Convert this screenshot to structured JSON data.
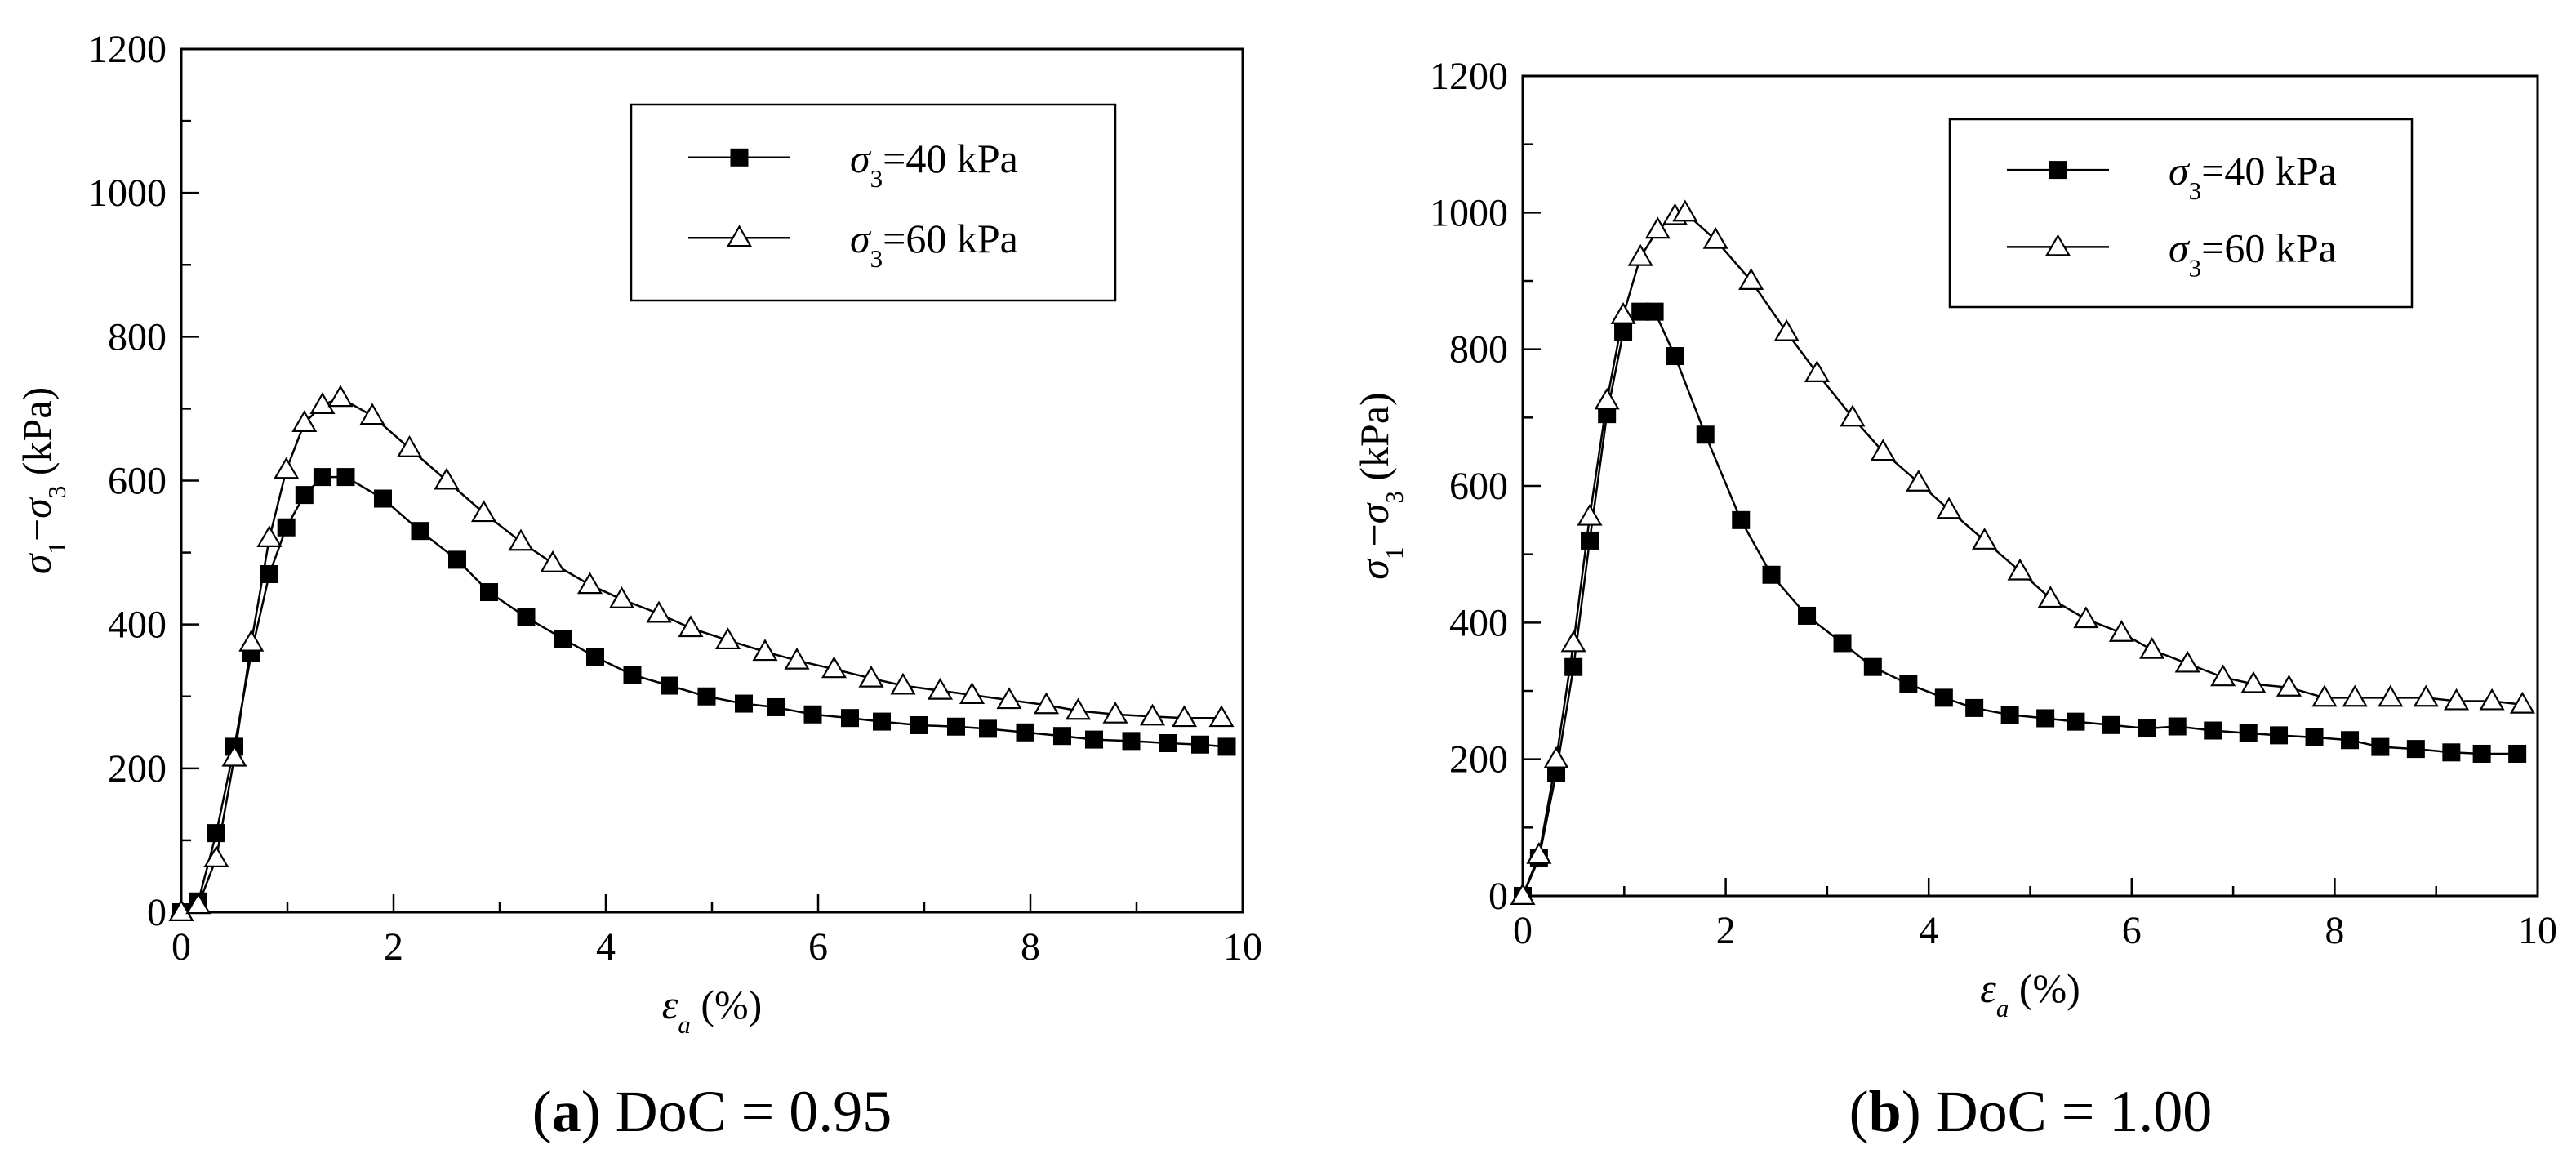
{
  "figure": {
    "panels": [
      {
        "caption_letter": "a",
        "caption_rest": " DoC = 0.95"
      },
      {
        "caption_letter": "b",
        "caption_rest": " DoC = 1.00"
      }
    ]
  },
  "chart_data": [
    {
      "type": "line",
      "title": "(a) DoC = 0.95",
      "xlabel": "εa (%)",
      "ylabel": "σ1−σ3 (kPa)",
      "xlim": [
        0,
        10
      ],
      "ylim": [
        0,
        1200
      ],
      "xticks": [
        "0",
        "2",
        "4",
        "6",
        "8",
        "10"
      ],
      "yticks": [
        "0",
        "200",
        "400",
        "600",
        "800",
        "1000",
        "1200"
      ],
      "legend_position": "top-right",
      "series": [
        {
          "name": "σ3=40 kPa",
          "marker": "filled-square",
          "x": [
            0,
            0.16,
            0.33,
            0.5,
            0.66,
            0.83,
            0.99,
            1.16,
            1.33,
            1.55,
            1.9,
            2.25,
            2.6,
            2.9,
            3.25,
            3.6,
            3.9,
            4.25,
            4.6,
            4.95,
            5.3,
            5.6,
            5.95,
            6.3,
            6.6,
            6.95,
            7.3,
            7.6,
            7.95,
            8.3,
            8.6,
            8.95,
            9.3,
            9.6,
            9.85
          ],
          "y": [
            0,
            15,
            110,
            230,
            360,
            470,
            535,
            580,
            605,
            605,
            575,
            530,
            490,
            445,
            410,
            380,
            355,
            330,
            315,
            300,
            290,
            285,
            275,
            270,
            265,
            260,
            258,
            255,
            250,
            245,
            240,
            238,
            235,
            233,
            230
          ]
        },
        {
          "name": "σ3=60 kPa",
          "marker": "open-triangle",
          "x": [
            0,
            0.16,
            0.33,
            0.5,
            0.66,
            0.83,
            0.99,
            1.16,
            1.33,
            1.5,
            1.8,
            2.15,
            2.5,
            2.85,
            3.2,
            3.5,
            3.85,
            4.15,
            4.5,
            4.8,
            5.15,
            5.5,
            5.8,
            6.15,
            6.5,
            6.8,
            7.15,
            7.45,
            7.8,
            8.15,
            8.45,
            8.8,
            9.15,
            9.45,
            9.8
          ],
          "y": [
            0,
            10,
            75,
            215,
            375,
            520,
            615,
            680,
            705,
            715,
            690,
            645,
            600,
            555,
            515,
            485,
            455,
            435,
            415,
            395,
            378,
            362,
            350,
            338,
            325,
            315,
            308,
            302,
            295,
            288,
            280,
            275,
            272,
            270,
            270
          ]
        }
      ]
    },
    {
      "type": "line",
      "title": "(b) DoC = 1.00",
      "xlabel": "εa (%)",
      "ylabel": "σ1−σ3 (kPa)",
      "xlim": [
        0,
        10
      ],
      "ylim": [
        0,
        1200
      ],
      "xticks": [
        "0",
        "2",
        "4",
        "6",
        "8",
        "10"
      ],
      "yticks": [
        "0",
        "200",
        "400",
        "600",
        "800",
        "1000",
        "1200"
      ],
      "legend_position": "top-right",
      "series": [
        {
          "name": "σ3=40 kPa",
          "marker": "filled-square",
          "x": [
            0,
            0.16,
            0.33,
            0.5,
            0.66,
            0.83,
            0.99,
            1.16,
            1.3,
            1.5,
            1.8,
            2.15,
            2.45,
            2.8,
            3.15,
            3.45,
            3.8,
            4.15,
            4.45,
            4.8,
            5.15,
            5.45,
            5.8,
            6.15,
            6.45,
            6.8,
            7.15,
            7.45,
            7.8,
            8.15,
            8.45,
            8.8,
            9.15,
            9.45,
            9.8
          ],
          "y": [
            0,
            55,
            180,
            335,
            520,
            705,
            825,
            855,
            855,
            790,
            675,
            550,
            470,
            410,
            370,
            335,
            310,
            290,
            275,
            265,
            260,
            255,
            250,
            245,
            248,
            242,
            238,
            235,
            232,
            228,
            218,
            215,
            210,
            208,
            208
          ]
        },
        {
          "name": "σ3=60 kPa",
          "marker": "open-triangle",
          "x": [
            0,
            0.16,
            0.33,
            0.5,
            0.66,
            0.83,
            0.99,
            1.16,
            1.33,
            1.5,
            1.6,
            1.9,
            2.25,
            2.6,
            2.9,
            3.25,
            3.55,
            3.9,
            4.2,
            4.55,
            4.9,
            5.2,
            5.55,
            5.9,
            6.2,
            6.55,
            6.9,
            7.2,
            7.55,
            7.9,
            8.2,
            8.55,
            8.9,
            9.2,
            9.55,
            9.85
          ],
          "y": [
            0,
            60,
            200,
            370,
            555,
            725,
            850,
            935,
            975,
            995,
            1000,
            960,
            900,
            825,
            765,
            700,
            650,
            605,
            565,
            520,
            475,
            435,
            405,
            385,
            360,
            340,
            320,
            310,
            305,
            290,
            290,
            290,
            290,
            285,
            285,
            280
          ]
        }
      ]
    }
  ]
}
